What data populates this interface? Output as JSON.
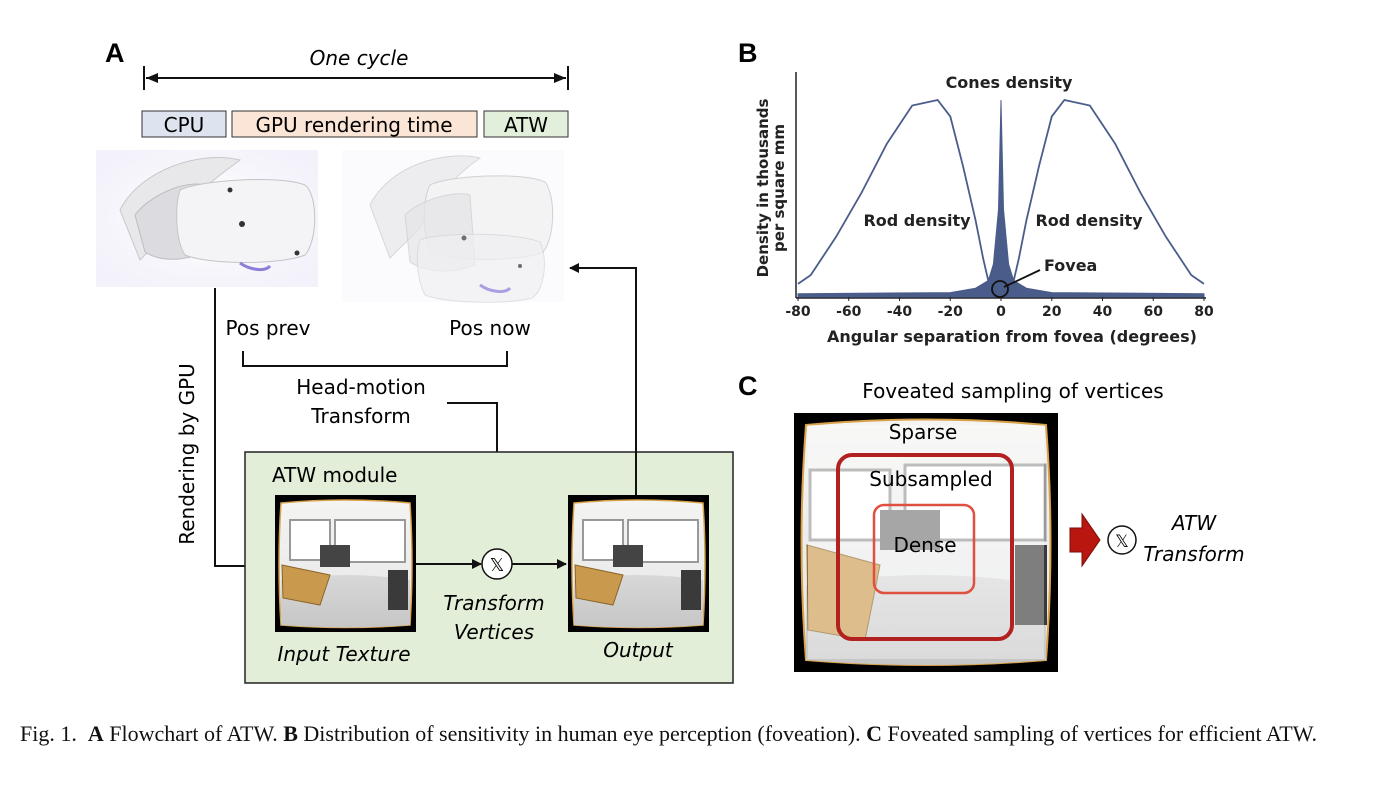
{
  "panel_a": {
    "label": "A",
    "cycle_label": "One cycle",
    "timeline": {
      "cpu": "CPU",
      "gpu": "GPU rendering time",
      "atw": "ATW"
    },
    "pos_prev": "Pos prev",
    "pos_now": "Pos now",
    "head_motion_line1": "Head-motion",
    "head_motion_line2": "Transform",
    "rendering_label": "Rendering by GPU",
    "module_title": "ATW module",
    "input_texture": "Input Texture",
    "transform_line1": "Transform",
    "transform_line2": "Vertices",
    "output": "Output",
    "multiply_symbol": "𝕏"
  },
  "panel_b": {
    "label": "B",
    "cones_label": "Cones density",
    "rod_left": "Rod density",
    "rod_right": "Rod density",
    "fovea": "Fovea",
    "ylabel_line1": "Density in thousands",
    "ylabel_line2": "per square mm",
    "xlabel": "Angular separation from fovea (degrees)"
  },
  "panel_c": {
    "label": "C",
    "title": "Foveated sampling of vertices",
    "sparse": "Sparse",
    "subsampled": "Subsampled",
    "dense": "Dense",
    "atw_line1": "ATW",
    "atw_line2": "Transform",
    "multiply_symbol": "𝕏"
  },
  "colors": {
    "cpu": "#dde3ef",
    "gpu": "#fbe5d6",
    "atw": "#e2efda",
    "module_bg": "#e2eed8",
    "curve": "#4a5c8a",
    "red_outer": "#b22020",
    "red_inner": "#e05040",
    "arrow_red": "#b8160e"
  },
  "chart_data": {
    "type": "line",
    "x_ticks": [
      "-80",
      "-60",
      "-40",
      "-20",
      "0",
      "20",
      "40",
      "60",
      "80"
    ],
    "xlim": [
      -80,
      80
    ],
    "grid": false,
    "series": [
      {
        "name": "Rod density",
        "x": [
          -80,
          -75,
          -65,
          -55,
          -45,
          -35,
          -25,
          -20,
          -15,
          -10,
          -7,
          -5,
          -3,
          -1,
          0,
          1,
          3,
          5,
          7,
          10,
          15,
          20,
          25,
          35,
          45,
          55,
          65,
          75,
          80
        ],
        "y": [
          12,
          20,
          55,
          95,
          140,
          175,
          180,
          165,
          120,
          70,
          35,
          15,
          5,
          1,
          0,
          1,
          5,
          15,
          35,
          70,
          120,
          165,
          180,
          175,
          140,
          95,
          55,
          20,
          12
        ]
      },
      {
        "name": "Cones density",
        "x": [
          -80,
          -20,
          -10,
          -5,
          -3,
          -1,
          0,
          1,
          3,
          5,
          10,
          20,
          80
        ],
        "y": [
          3,
          4,
          8,
          15,
          30,
          80,
          180,
          80,
          30,
          15,
          8,
          4,
          3
        ]
      }
    ]
  },
  "caption": {
    "prefix": "Fig. 1.",
    "a_label": "A",
    "a_text": "Flowchart of ATW.",
    "b_label": "B",
    "b_text": "Distribution of sensitivity in human eye perception (foveation).",
    "c_label": "C",
    "c_text": "Foveated sampling of vertices for efficient ATW."
  }
}
